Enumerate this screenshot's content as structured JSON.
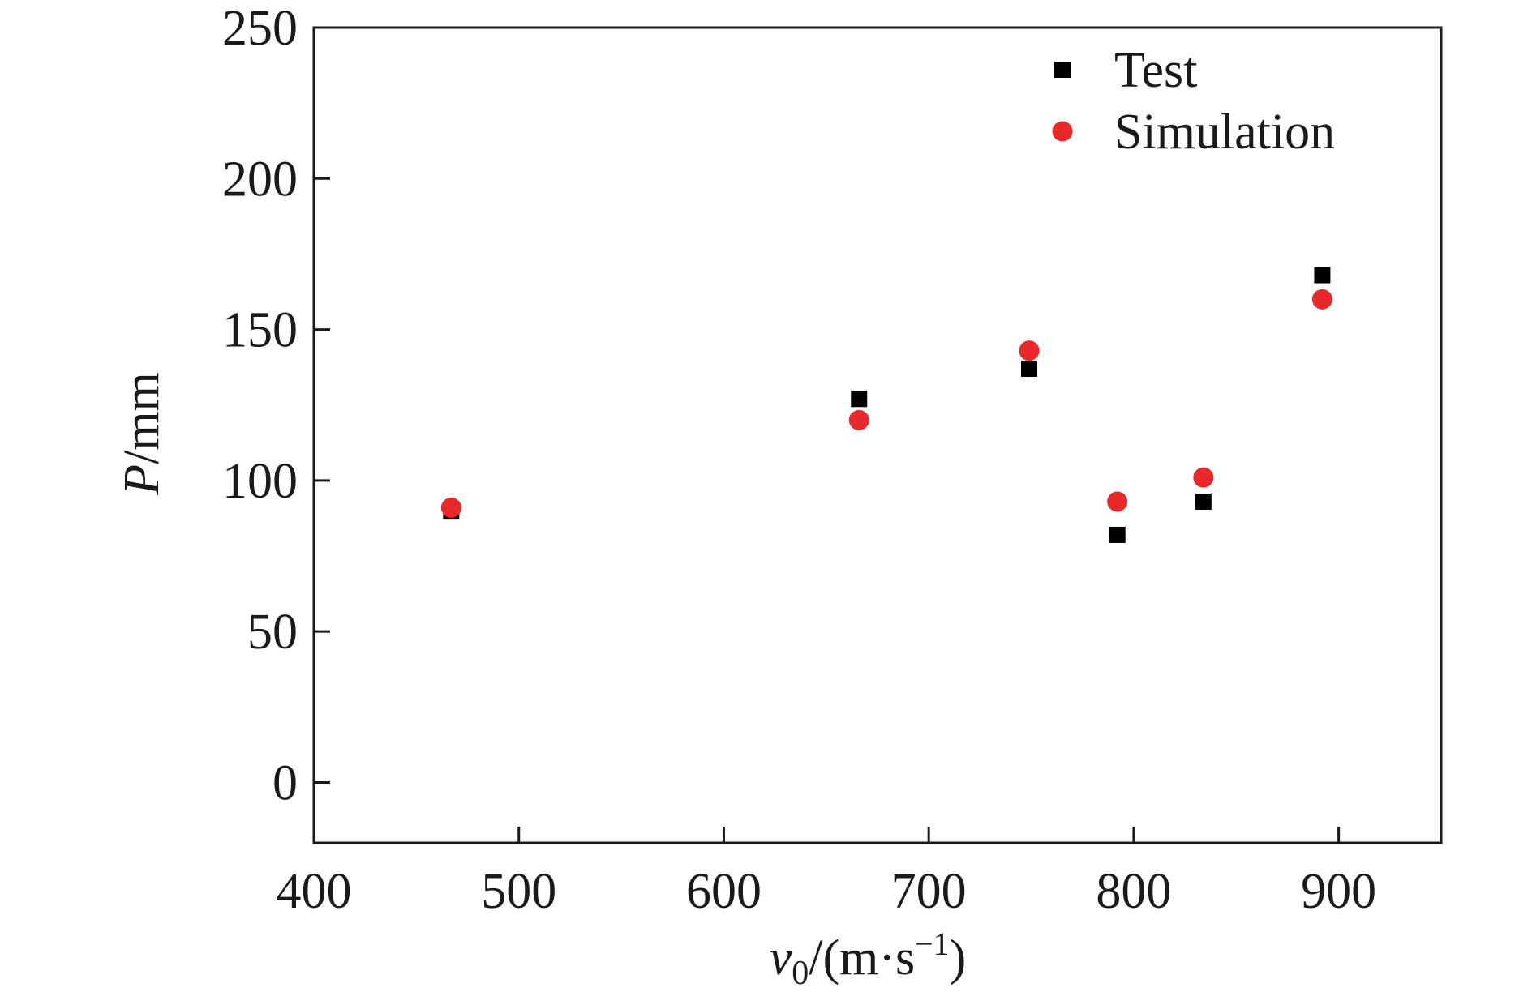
{
  "chart_data": {
    "type": "scatter",
    "xlabel": {
      "var": "v",
      "sub": "0",
      "unit_pre": "/(m·s",
      "unit_sup": "−1",
      "unit_post": ")"
    },
    "ylabel": {
      "var": "P",
      "unit": "/mm"
    },
    "xlim": [
      400,
      950
    ],
    "ylim": [
      -20,
      250
    ],
    "xticks": [
      400,
      500,
      600,
      700,
      800,
      900
    ],
    "yticks": [
      0,
      50,
      100,
      150,
      200,
      250
    ],
    "grid": false,
    "legend_position": "top-right",
    "series": [
      {
        "name": "Test",
        "marker": "square",
        "color": "#000000",
        "points": [
          {
            "x": 467,
            "y": 90
          },
          {
            "x": 666,
            "y": 127
          },
          {
            "x": 749,
            "y": 137
          },
          {
            "x": 792,
            "y": 82
          },
          {
            "x": 834,
            "y": 93
          },
          {
            "x": 892,
            "y": 168
          }
        ]
      },
      {
        "name": "Simulation",
        "marker": "circle",
        "color": "#e8282b",
        "points": [
          {
            "x": 467,
            "y": 91
          },
          {
            "x": 666,
            "y": 120
          },
          {
            "x": 749,
            "y": 143
          },
          {
            "x": 792,
            "y": 93
          },
          {
            "x": 834,
            "y": 101
          },
          {
            "x": 892,
            "y": 160
          }
        ]
      }
    ]
  }
}
